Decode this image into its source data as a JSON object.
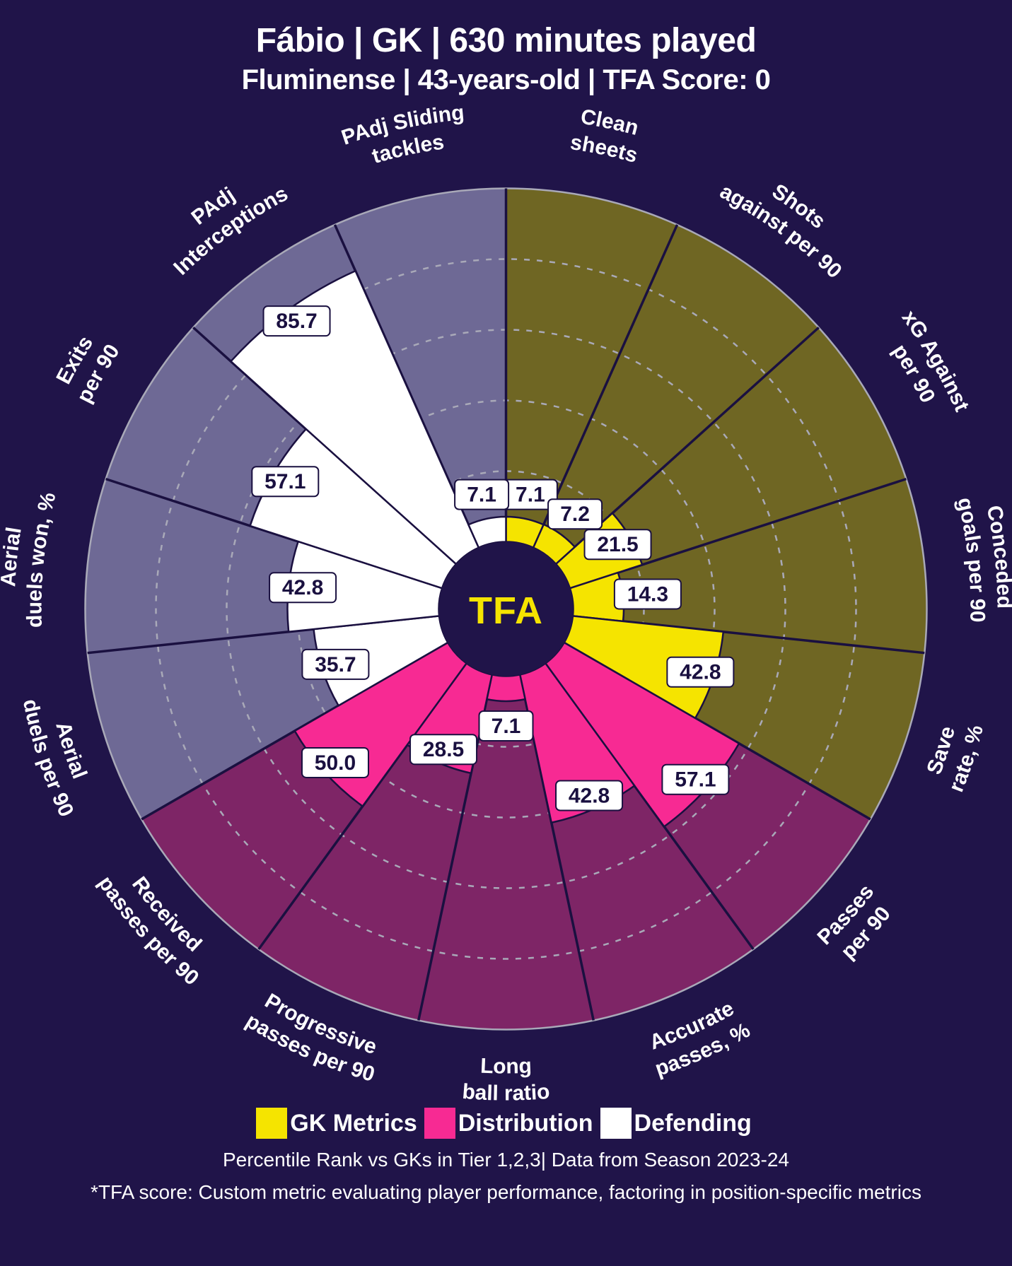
{
  "header": {
    "title": "Fábio | GK | 630 minutes played",
    "subtitle": "Fluminense | 43-years-old | TFA Score: 0"
  },
  "chart": {
    "type": "polar-bar",
    "background_color": "#201449",
    "center_logo_text": "TFA",
    "center_logo_color": "#f5e400",
    "center_circle_fill": "#201449",
    "inner_radius": 95,
    "outer_radius": 595,
    "label_radius": 625,
    "grid_circle_count": 5,
    "grid_stroke": "#a9a9b8",
    "grid_dash": "8 10",
    "spoke_stroke": "#1a1040",
    "spoke_width": 3.5,
    "groups": [
      {
        "name": "GK Metrics",
        "bar_color": "#f5e400",
        "bg_color": "#6f6623"
      },
      {
        "name": "Distribution",
        "bar_color": "#f72a93",
        "bg_color": "#7e2566"
      },
      {
        "name": "Defending",
        "bar_color": "#ffffff",
        "bg_color": "#6e6995"
      }
    ],
    "metrics": [
      {
        "group": 0,
        "label": "Clean sheets",
        "value": 7.1
      },
      {
        "group": 0,
        "label": "Shots against per 90",
        "value": 7.2
      },
      {
        "group": 0,
        "label": "xG Against per 90",
        "value": 21.5
      },
      {
        "group": 0,
        "label": "Conceded goals per 90",
        "value": 14.3
      },
      {
        "group": 0,
        "label": "Save rate, %",
        "value": 42.8
      },
      {
        "group": 1,
        "label": "Passes per 90",
        "value": 57.1
      },
      {
        "group": 1,
        "label": "Accurate passes, %",
        "value": 42.8
      },
      {
        "group": 1,
        "label": "Long ball ratio",
        "value": 7.1
      },
      {
        "group": 1,
        "label": "Progressive passes per 90",
        "value": 28.5
      },
      {
        "group": 1,
        "label": "Received passes per 90",
        "value": 50.0
      },
      {
        "group": 2,
        "label": "Aerial duels per 90",
        "value": 35.7
      },
      {
        "group": 2,
        "label": "Aerial duels won, %",
        "value": 42.8
      },
      {
        "group": 2,
        "label": "Exits per 90",
        "value": 57.1
      },
      {
        "group": 2,
        "label": "PAdj Interceptions",
        "value": 85.7
      },
      {
        "group": 2,
        "label": "PAdj Sliding tackles",
        "value": 7.1
      }
    ],
    "value_label_fontsize": 30,
    "metric_label_fontsize": 30,
    "title_fontsize": 48,
    "subtitle_fontsize": 40
  },
  "legend": {
    "items": [
      {
        "label": "GK Metrics",
        "color": "#f5e400"
      },
      {
        "label": "Distribution",
        "color": "#f72a93"
      },
      {
        "label": "Defending",
        "color": "#ffffff"
      }
    ]
  },
  "caption": "Percentile Rank vs GKs in Tier 1,2,3| Data from Season 2023-24",
  "footnote": "*TFA score: Custom metric evaluating player performance, factoring in position-specific metrics"
}
